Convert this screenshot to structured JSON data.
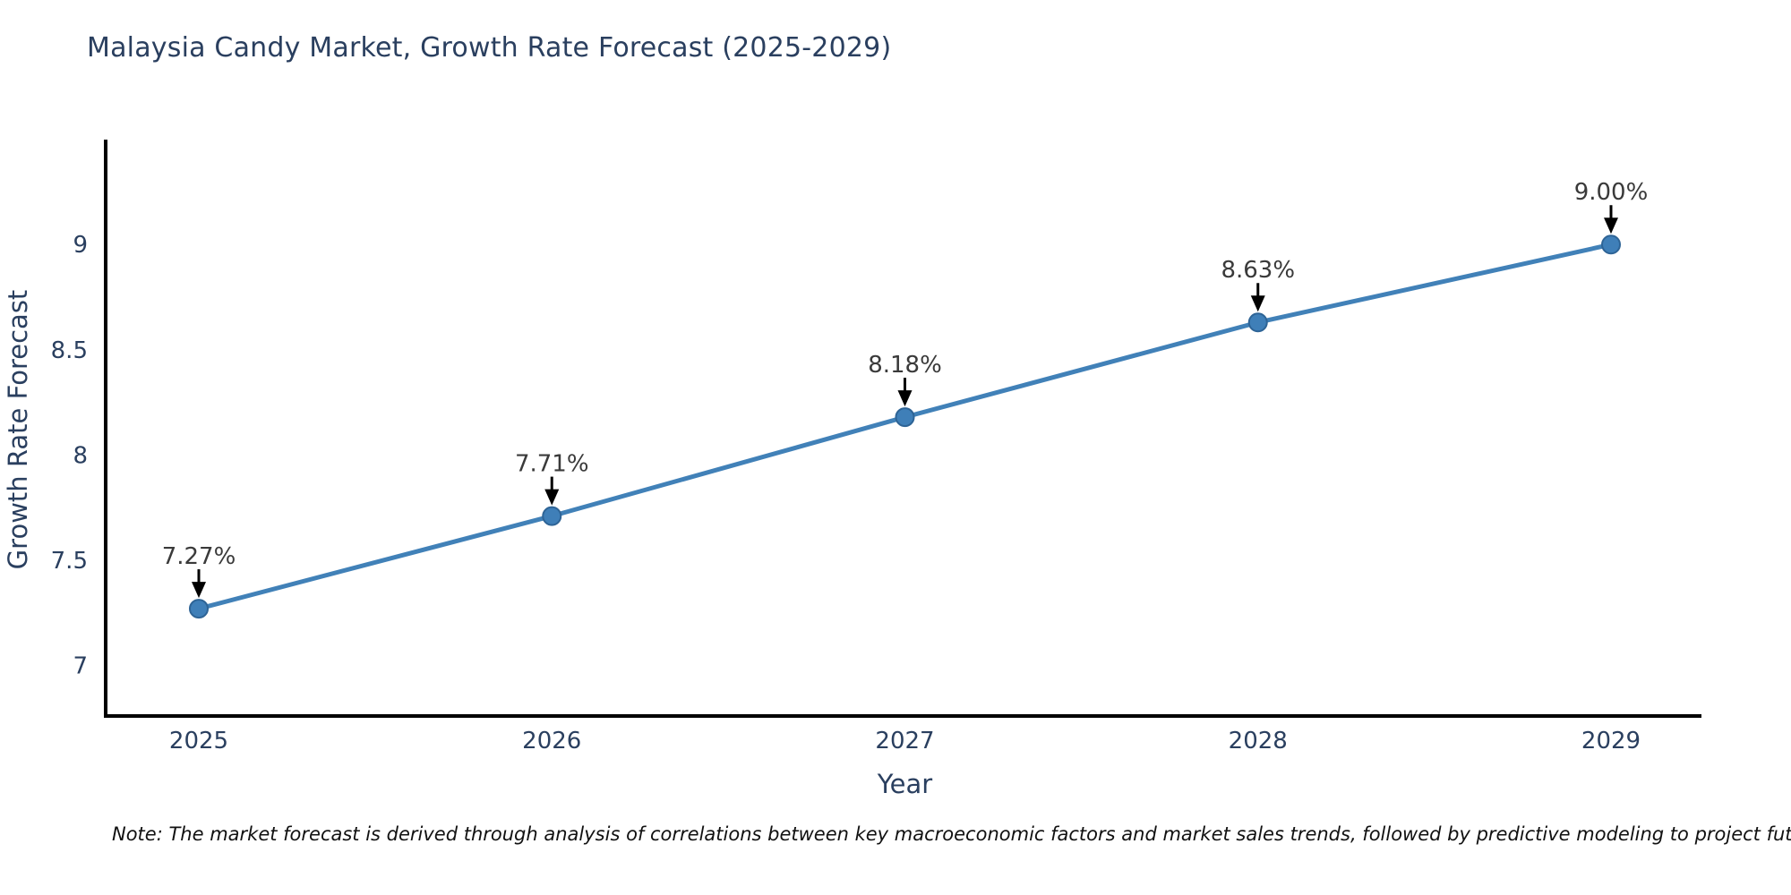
{
  "chart_data": {
    "type": "line",
    "title": "Malaysia Candy Market, Growth Rate Forecast (2025-2029)",
    "xlabel": "Year",
    "ylabel": "Growth Rate Forecast",
    "categories": [
      "2025",
      "2026",
      "2027",
      "2028",
      "2029"
    ],
    "series": [
      {
        "name": "Growth Rate Forecast",
        "values": [
          7.27,
          7.71,
          8.18,
          8.63,
          9.0
        ],
        "point_labels": [
          "7.27%",
          "7.71%",
          "8.18%",
          "8.63%",
          "9.00%"
        ]
      }
    ],
    "y_ticks": [
      "7",
      "7.5",
      "8",
      "8.5",
      "9"
    ],
    "y_tick_values": [
      7,
      7.5,
      8,
      8.5,
      9
    ],
    "ylim": [
      6.76,
      9.49
    ],
    "grid": false,
    "legend_position": "none",
    "annotation_arrows": true,
    "colors": {
      "line": "#4181b8",
      "marker_fill": "#3f7fb8",
      "marker_edge": "#2e6496",
      "axis": "#000000",
      "title_text": "#2a3f5f",
      "tick_text": "#2a3f5f",
      "axis_label_text": "#2a3f5f",
      "annotation_text": "#3a3a3a",
      "arrow": "#000000",
      "background": "#ffffff"
    }
  },
  "note": {
    "text": "Note: The market forecast is derived through analysis of correlations between key macroeconomic factors and market sales trends, followed by predictive modeling to project future sales"
  }
}
